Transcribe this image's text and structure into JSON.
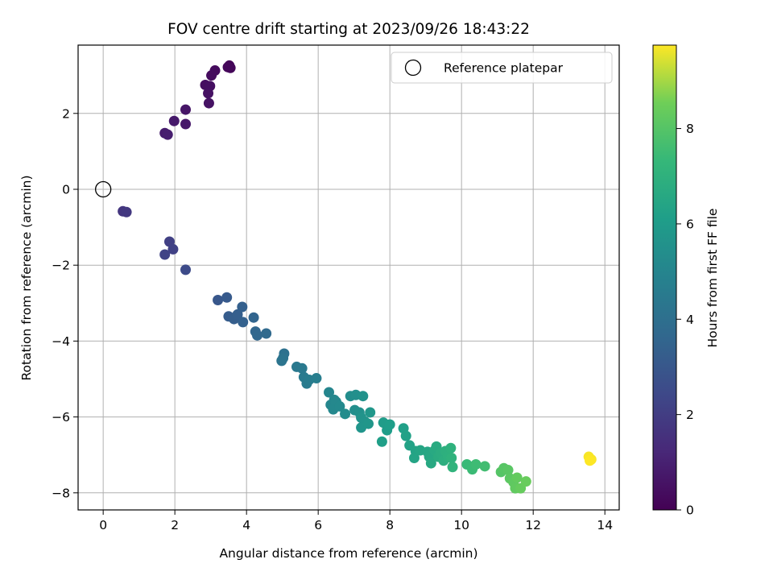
{
  "chart_data": {
    "type": "scatter",
    "title": "FOV centre drift starting at 2023/09/26 18:43:22",
    "xlabel": "Angular distance from reference (arcmin)",
    "ylabel": "Rotation from reference (arcmin)",
    "xlim": [
      -0.7,
      14.4
    ],
    "ylim": [
      -8.45,
      3.8
    ],
    "xticks": [
      0,
      2,
      4,
      6,
      8,
      10,
      12,
      14
    ],
    "yticks": [
      -8,
      -6,
      -4,
      -2,
      0,
      2
    ],
    "grid": true,
    "legend": {
      "placement": "top-right",
      "label": "Reference platepar"
    },
    "reference_point": {
      "x": 0,
      "y": 0
    },
    "colorbar": {
      "label": "Hours from first FF file",
      "range": [
        0,
        9.75
      ],
      "ticks": [
        0,
        2,
        4,
        6,
        8
      ],
      "colormap": "viridis"
    },
    "points": [
      {
        "x": 3.52,
        "y": 3.26,
        "c": 0.1
      },
      {
        "x": 3.55,
        "y": 3.2,
        "c": 0.15
      },
      {
        "x": 3.48,
        "y": 3.22,
        "c": 0.2
      },
      {
        "x": 3.12,
        "y": 3.13,
        "c": 0.3
      },
      {
        "x": 3.02,
        "y": 3.0,
        "c": 0.35
      },
      {
        "x": 2.85,
        "y": 2.75,
        "c": 0.4
      },
      {
        "x": 2.98,
        "y": 2.72,
        "c": 0.45
      },
      {
        "x": 2.93,
        "y": 2.53,
        "c": 0.5
      },
      {
        "x": 2.95,
        "y": 2.27,
        "c": 0.55
      },
      {
        "x": 2.3,
        "y": 2.1,
        "c": 0.65
      },
      {
        "x": 2.3,
        "y": 1.72,
        "c": 0.7
      },
      {
        "x": 1.98,
        "y": 1.8,
        "c": 0.75
      },
      {
        "x": 1.72,
        "y": 1.48,
        "c": 0.85
      },
      {
        "x": 1.8,
        "y": 1.44,
        "c": 0.9
      },
      {
        "x": 0.55,
        "y": -0.58,
        "c": 1.75
      },
      {
        "x": 0.65,
        "y": -0.6,
        "c": 1.8
      },
      {
        "x": 1.85,
        "y": -1.38,
        "c": 2.1
      },
      {
        "x": 1.95,
        "y": -1.58,
        "c": 2.15
      },
      {
        "x": 1.72,
        "y": -1.72,
        "c": 2.2
      },
      {
        "x": 2.3,
        "y": -2.12,
        "c": 2.5
      },
      {
        "x": 3.2,
        "y": -2.92,
        "c": 3.0
      },
      {
        "x": 3.45,
        "y": -2.85,
        "c": 3.1
      },
      {
        "x": 3.5,
        "y": -3.35,
        "c": 3.2
      },
      {
        "x": 3.65,
        "y": -3.42,
        "c": 3.25
      },
      {
        "x": 3.75,
        "y": -3.3,
        "c": 3.3
      },
      {
        "x": 3.88,
        "y": -3.1,
        "c": 3.35
      },
      {
        "x": 3.9,
        "y": -3.5,
        "c": 3.4
      },
      {
        "x": 4.2,
        "y": -3.38,
        "c": 3.55
      },
      {
        "x": 4.25,
        "y": -3.75,
        "c": 3.6
      },
      {
        "x": 4.3,
        "y": -3.85,
        "c": 3.65
      },
      {
        "x": 4.55,
        "y": -3.8,
        "c": 3.75
      },
      {
        "x": 5.05,
        "y": -4.33,
        "c": 4.1
      },
      {
        "x": 5.02,
        "y": -4.45,
        "c": 4.15
      },
      {
        "x": 4.98,
        "y": -4.52,
        "c": 4.2
      },
      {
        "x": 5.4,
        "y": -4.68,
        "c": 4.4
      },
      {
        "x": 5.55,
        "y": -4.72,
        "c": 4.45
      },
      {
        "x": 5.6,
        "y": -4.95,
        "c": 4.5
      },
      {
        "x": 5.68,
        "y": -5.12,
        "c": 4.55
      },
      {
        "x": 5.75,
        "y": -5.02,
        "c": 4.6
      },
      {
        "x": 5.95,
        "y": -4.98,
        "c": 4.7
      },
      {
        "x": 6.3,
        "y": -5.35,
        "c": 5.0
      },
      {
        "x": 6.35,
        "y": -5.68,
        "c": 5.05
      },
      {
        "x": 6.45,
        "y": -5.55,
        "c": 5.1
      },
      {
        "x": 6.5,
        "y": -5.6,
        "c": 5.12
      },
      {
        "x": 6.42,
        "y": -5.8,
        "c": 5.15
      },
      {
        "x": 6.6,
        "y": -5.72,
        "c": 5.2
      },
      {
        "x": 6.75,
        "y": -5.92,
        "c": 5.3
      },
      {
        "x": 6.9,
        "y": -5.45,
        "c": 5.35
      },
      {
        "x": 7.02,
        "y": -5.82,
        "c": 5.4
      },
      {
        "x": 7.05,
        "y": -5.42,
        "c": 5.45
      },
      {
        "x": 7.15,
        "y": -5.88,
        "c": 5.5
      },
      {
        "x": 7.25,
        "y": -5.45,
        "c": 5.55
      },
      {
        "x": 7.2,
        "y": -6.02,
        "c": 5.6
      },
      {
        "x": 7.3,
        "y": -6.12,
        "c": 5.65
      },
      {
        "x": 7.2,
        "y": -6.28,
        "c": 5.7
      },
      {
        "x": 7.4,
        "y": -6.18,
        "c": 5.75
      },
      {
        "x": 7.45,
        "y": -5.88,
        "c": 5.8
      },
      {
        "x": 7.82,
        "y": -6.15,
        "c": 6.0
      },
      {
        "x": 7.92,
        "y": -6.35,
        "c": 6.05
      },
      {
        "x": 8.0,
        "y": -6.2,
        "c": 6.1
      },
      {
        "x": 7.78,
        "y": -6.65,
        "c": 6.15
      },
      {
        "x": 8.38,
        "y": -6.3,
        "c": 6.2
      },
      {
        "x": 8.45,
        "y": -6.5,
        "c": 6.25
      },
      {
        "x": 8.55,
        "y": -6.75,
        "c": 6.3
      },
      {
        "x": 8.72,
        "y": -6.9,
        "c": 6.35
      },
      {
        "x": 8.68,
        "y": -7.08,
        "c": 6.4
      },
      {
        "x": 8.85,
        "y": -6.88,
        "c": 6.45
      },
      {
        "x": 9.05,
        "y": -6.92,
        "c": 6.5
      },
      {
        "x": 9.1,
        "y": -7.05,
        "c": 6.55
      },
      {
        "x": 9.15,
        "y": -7.22,
        "c": 6.6
      },
      {
        "x": 9.25,
        "y": -6.88,
        "c": 6.65
      },
      {
        "x": 9.3,
        "y": -6.78,
        "c": 6.7
      },
      {
        "x": 9.35,
        "y": -7.05,
        "c": 6.75
      },
      {
        "x": 9.42,
        "y": -6.95,
        "c": 6.8
      },
      {
        "x": 9.5,
        "y": -7.15,
        "c": 6.85
      },
      {
        "x": 9.55,
        "y": -6.9,
        "c": 6.9
      },
      {
        "x": 9.62,
        "y": -7.05,
        "c": 6.95
      },
      {
        "x": 9.7,
        "y": -6.82,
        "c": 7.0
      },
      {
        "x": 9.72,
        "y": -7.08,
        "c": 7.05
      },
      {
        "x": 9.75,
        "y": -7.32,
        "c": 7.1
      },
      {
        "x": 10.15,
        "y": -7.25,
        "c": 7.4
      },
      {
        "x": 10.3,
        "y": -7.38,
        "c": 7.45
      },
      {
        "x": 10.4,
        "y": -7.25,
        "c": 7.5
      },
      {
        "x": 10.65,
        "y": -7.3,
        "c": 7.6
      },
      {
        "x": 11.1,
        "y": -7.45,
        "c": 8.0
      },
      {
        "x": 11.18,
        "y": -7.35,
        "c": 8.05
      },
      {
        "x": 11.3,
        "y": -7.4,
        "c": 8.1
      },
      {
        "x": 11.35,
        "y": -7.62,
        "c": 8.15
      },
      {
        "x": 11.45,
        "y": -7.72,
        "c": 8.2
      },
      {
        "x": 11.5,
        "y": -7.88,
        "c": 8.25
      },
      {
        "x": 11.55,
        "y": -7.6,
        "c": 8.3
      },
      {
        "x": 11.65,
        "y": -7.88,
        "c": 8.35
      },
      {
        "x": 11.8,
        "y": -7.7,
        "c": 8.4
      },
      {
        "x": 13.55,
        "y": -7.05,
        "c": 9.7
      },
      {
        "x": 13.62,
        "y": -7.12,
        "c": 9.72
      },
      {
        "x": 13.58,
        "y": -7.15,
        "c": 9.75
      }
    ]
  }
}
